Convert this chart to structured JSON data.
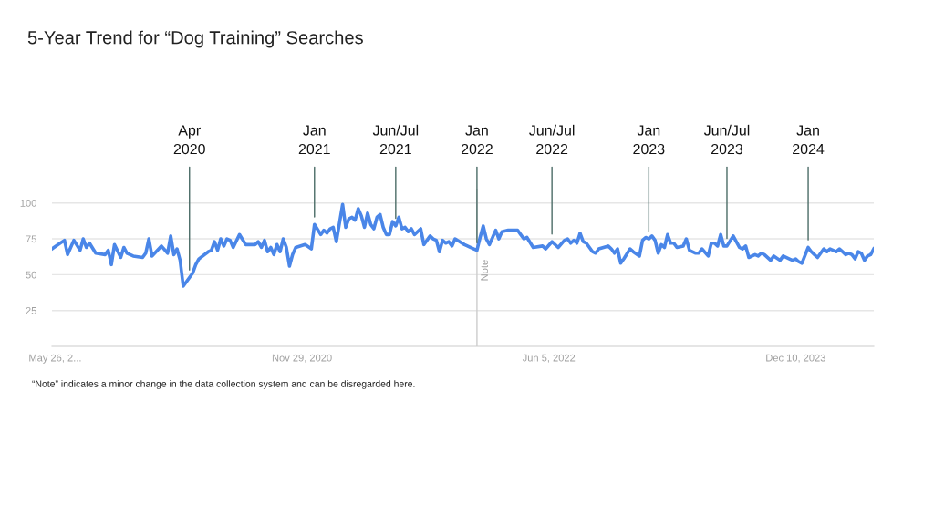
{
  "chart_data": {
    "type": "line",
    "title": "5-Year Trend for “Dog Training” Searches",
    "x": [
      "2019-05-19",
      "2019-06-02",
      "2019-06-16",
      "2019-06-23",
      "2019-07-07",
      "2019-07-21",
      "2019-07-28",
      "2019-08-04",
      "2019-08-11",
      "2019-08-25",
      "2019-09-15",
      "2019-09-22",
      "2019-09-29",
      "2019-10-06",
      "2019-10-20",
      "2019-10-27",
      "2019-11-03",
      "2019-11-17",
      "2019-12-08",
      "2019-12-15",
      "2019-12-22",
      "2019-12-29",
      "2020-01-19",
      "2020-02-02",
      "2020-02-09",
      "2020-02-16",
      "2020-02-23",
      "2020-03-01",
      "2020-03-08",
      "2020-03-22",
      "2020-03-29",
      "2020-04-05",
      "2020-04-12",
      "2020-05-03",
      "2020-05-10",
      "2020-05-17",
      "2020-05-24",
      "2020-05-31",
      "2020-06-07",
      "2020-06-14",
      "2020-06-21",
      "2020-06-28",
      "2020-07-12",
      "2020-07-26",
      "2020-08-16",
      "2020-08-23",
      "2020-08-30",
      "2020-09-06",
      "2020-09-13",
      "2020-09-20",
      "2020-09-27",
      "2020-10-04",
      "2020-10-11",
      "2020-10-18",
      "2020-10-25",
      "2020-11-01",
      "2020-11-08",
      "2020-11-15",
      "2020-12-06",
      "2020-12-20",
      "2020-12-27",
      "2021-01-10",
      "2021-01-17",
      "2021-01-24",
      "2021-01-31",
      "2021-02-07",
      "2021-02-14",
      "2021-02-28",
      "2021-03-07",
      "2021-03-14",
      "2021-03-21",
      "2021-03-28",
      "2021-04-04",
      "2021-04-11",
      "2021-04-18",
      "2021-04-25",
      "2021-05-02",
      "2021-05-09",
      "2021-05-16",
      "2021-05-23",
      "2021-05-30",
      "2021-06-06",
      "2021-06-13",
      "2021-06-20",
      "2021-06-27",
      "2021-07-04",
      "2021-07-11",
      "2021-07-18",
      "2021-07-25",
      "2021-08-01",
      "2021-08-08",
      "2021-08-22",
      "2021-08-29",
      "2021-09-12",
      "2021-09-19",
      "2021-09-26",
      "2021-10-03",
      "2021-10-10",
      "2021-10-17",
      "2021-10-24",
      "2021-10-31",
      "2021-11-07",
      "2021-11-28",
      "2021-12-19",
      "2021-12-26",
      "2022-01-02",
      "2022-01-09",
      "2022-01-16",
      "2022-01-23",
      "2022-01-30",
      "2022-02-06",
      "2022-02-13",
      "2022-02-20",
      "2022-03-06",
      "2022-03-27",
      "2022-04-03",
      "2022-04-10",
      "2022-04-17",
      "2022-05-01",
      "2022-05-22",
      "2022-05-29",
      "2022-06-12",
      "2022-06-26",
      "2022-07-10",
      "2022-07-17",
      "2022-07-24",
      "2022-07-31",
      "2022-08-07",
      "2022-08-14",
      "2022-08-21",
      "2022-08-28",
      "2022-09-11",
      "2022-09-18",
      "2022-09-25",
      "2022-10-16",
      "2022-10-23",
      "2022-10-30",
      "2022-11-06",
      "2022-11-13",
      "2022-11-20",
      "2022-12-04",
      "2022-12-11",
      "2022-12-25",
      "2023-01-01",
      "2023-01-08",
      "2023-01-15",
      "2023-01-22",
      "2023-01-29",
      "2023-02-05",
      "2023-02-12",
      "2023-02-19",
      "2023-02-26",
      "2023-03-05",
      "2023-03-12",
      "2023-03-19",
      "2023-04-02",
      "2023-04-09",
      "2023-04-16",
      "2023-04-30",
      "2023-05-07",
      "2023-05-14",
      "2023-05-28",
      "2023-06-04",
      "2023-06-11",
      "2023-06-18",
      "2023-06-25",
      "2023-07-02",
      "2023-07-09",
      "2023-07-23",
      "2023-08-06",
      "2023-08-13",
      "2023-08-20",
      "2023-08-27",
      "2023-09-10",
      "2023-09-17",
      "2023-09-24",
      "2023-10-01",
      "2023-10-15",
      "2023-10-22",
      "2023-11-05",
      "2023-11-12",
      "2023-11-26",
      "2023-12-03",
      "2023-12-10",
      "2023-12-17",
      "2023-12-24",
      "2024-01-07",
      "2024-01-14",
      "2024-01-21",
      "2024-01-28",
      "2024-02-04",
      "2024-02-11",
      "2024-02-18",
      "2024-02-25",
      "2024-03-10",
      "2024-03-17",
      "2024-03-24",
      "2024-03-31",
      "2024-04-07",
      "2024-04-14",
      "2024-04-21",
      "2024-04-28",
      "2024-05-05",
      "2024-05-12",
      "2024-05-19",
      "2024-05-26",
      "2024-06-02"
    ],
    "series": [
      {
        "color": "#4a86e8",
        "values": [
          68,
          71,
          74,
          64,
          74,
          67,
          75,
          69,
          72,
          65,
          64,
          67,
          57,
          71,
          62,
          69,
          65,
          63,
          62,
          65,
          75,
          63,
          70,
          65,
          77,
          64,
          68,
          60,
          42,
          48,
          51,
          57,
          61,
          66,
          67,
          73,
          67,
          75,
          70,
          75,
          74,
          69,
          78,
          71,
          71,
          73,
          69,
          74,
          66,
          69,
          64,
          71,
          66,
          75,
          69,
          56,
          64,
          69,
          71,
          68,
          85,
          78,
          81,
          79,
          82,
          83,
          73,
          99,
          83,
          89,
          90,
          88,
          96,
          91,
          83,
          93,
          85,
          82,
          90,
          92,
          83,
          78,
          78,
          87,
          84,
          90,
          82,
          83,
          80,
          82,
          78,
          82,
          71,
          77,
          75,
          74,
          66,
          74,
          72,
          73,
          70,
          75,
          71,
          68,
          67,
          76,
          84,
          75,
          71,
          76,
          81,
          75,
          80,
          81,
          81,
          78,
          75,
          76,
          69,
          70,
          68,
          73,
          69,
          74,
          75,
          72,
          74,
          72,
          79,
          73,
          72,
          66,
          65,
          68,
          70,
          68,
          65,
          68,
          58,
          61,
          68,
          66,
          63,
          74,
          76,
          75,
          77,
          74,
          65,
          71,
          69,
          78,
          72,
          72,
          69,
          70,
          75,
          67,
          65,
          65,
          68,
          63,
          72,
          72,
          70,
          78,
          70,
          70,
          77,
          69,
          68,
          70,
          62,
          64,
          63,
          65,
          64,
          60,
          63,
          60,
          63,
          61,
          60,
          61,
          59,
          58,
          69,
          66,
          64,
          62,
          65,
          68,
          66,
          68,
          66,
          68,
          66,
          64,
          65,
          64,
          61,
          66,
          65,
          60,
          63,
          64,
          68
        ]
      }
    ],
    "xlim": [
      "2019-05-19",
      "2024-06-02"
    ],
    "xticks": [
      {
        "value": "2019-05-26",
        "label": "May 26, 2..."
      },
      {
        "value": "2020-11-29",
        "label": "Nov 29, 2020"
      },
      {
        "value": "2022-06-05",
        "label": "Jun 5, 2022"
      },
      {
        "value": "2023-12-10",
        "label": "Dec 10, 2023"
      }
    ],
    "ylim": [
      0,
      110
    ],
    "yticks": [
      25,
      50,
      75,
      100
    ],
    "grid": "y",
    "ref_lines": [
      {
        "axis": "x",
        "value": "2021-12-26",
        "label": "Note",
        "color": "#cccccc"
      }
    ],
    "annotations": [
      {
        "text": "Apr\n2020",
        "x": "2020-03-22",
        "y": 48
      },
      {
        "text": "Jan\n2021",
        "x": "2020-12-27",
        "y": 85
      },
      {
        "text": "Jun/Jul\n2021",
        "x": "2021-06-27",
        "y": 84
      },
      {
        "text": "Jan\n2022",
        "x": "2021-12-26",
        "y": 67
      },
      {
        "text": "Jun/Jul\n2022",
        "x": "2022-06-12",
        "y": 73
      },
      {
        "text": "Jan\n2023",
        "x": "2023-01-15",
        "y": 75
      },
      {
        "text": "Jun/Jul\n2023",
        "x": "2023-07-09",
        "y": 70
      },
      {
        "text": "Jan\n2024",
        "x": "2024-01-07",
        "y": 69
      },
      "“Note” indicates a minor change in the data collection system and can be disregarded here."
    ]
  }
}
